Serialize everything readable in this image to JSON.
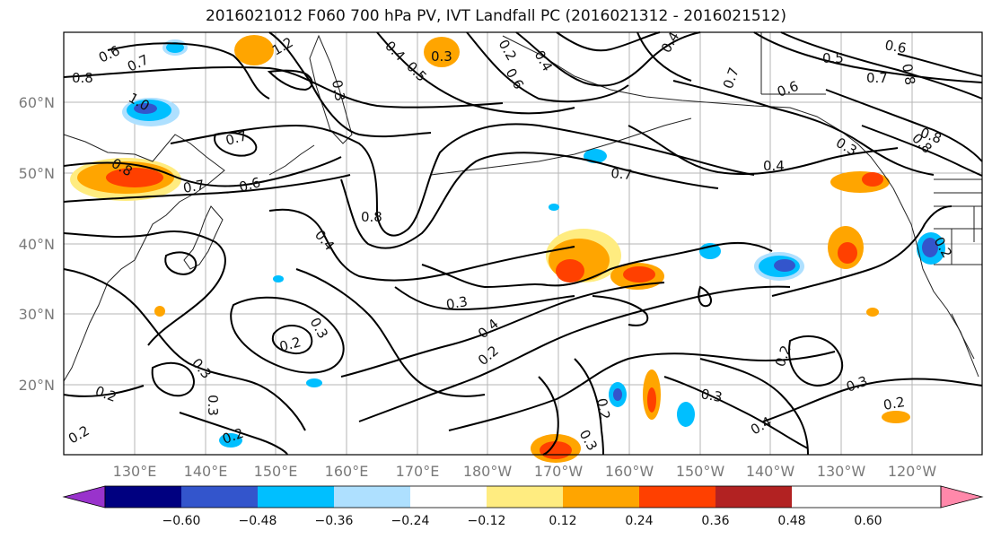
{
  "title": "2016021012 F060 700 hPa PV, IVT Landfall PC (2016021312 - 2016021512)",
  "lon_labels": [
    "130°E",
    "140°E",
    "150°E",
    "160°E",
    "170°E",
    "180°W",
    "170°W",
    "160°W",
    "150°W",
    "140°W",
    "130°W",
    "120°W"
  ],
  "lat_labels": [
    "60°N",
    "50°N",
    "40°N",
    "30°N",
    "20°N"
  ],
  "colorbar": {
    "colors": [
      "#9933cc",
      "#000080",
      "#3355cc",
      "#00bfff",
      "#aee0ff",
      "#ffffff",
      "#ffec80",
      "#ffa500",
      "#ff4000",
      "#b22222",
      "#ff88aa"
    ],
    "ticks": [
      "−0.60",
      "−0.48",
      "−0.36",
      "−0.24",
      "−0.12",
      "0.12",
      "0.24",
      "0.36",
      "0.48",
      "0.60"
    ]
  },
  "contour_labels": [
    "0.6",
    "0.7",
    "1.2",
    "0.4",
    "0.5",
    "0.3",
    "0.2",
    "0.6",
    "0.4",
    "0.7",
    "0.5",
    "0.8",
    "0.8",
    "1.0",
    "0.7",
    "0.3",
    "0.4",
    "0.8",
    "0.6",
    "0.7",
    "0.6",
    "0.3",
    "0.8",
    "0.7",
    "0.8",
    "0.4",
    "0.7",
    "0.6",
    "0.8",
    "0.4",
    "0.3",
    "0.3",
    "0.2",
    "0.4",
    "0.2",
    "0.3",
    "0.2",
    "0.2",
    "0.3",
    "0.3",
    "0.2",
    "0.2",
    "0.3",
    "0.4",
    "0.2",
    "0.2",
    "0.3",
    "0.2"
  ]
}
